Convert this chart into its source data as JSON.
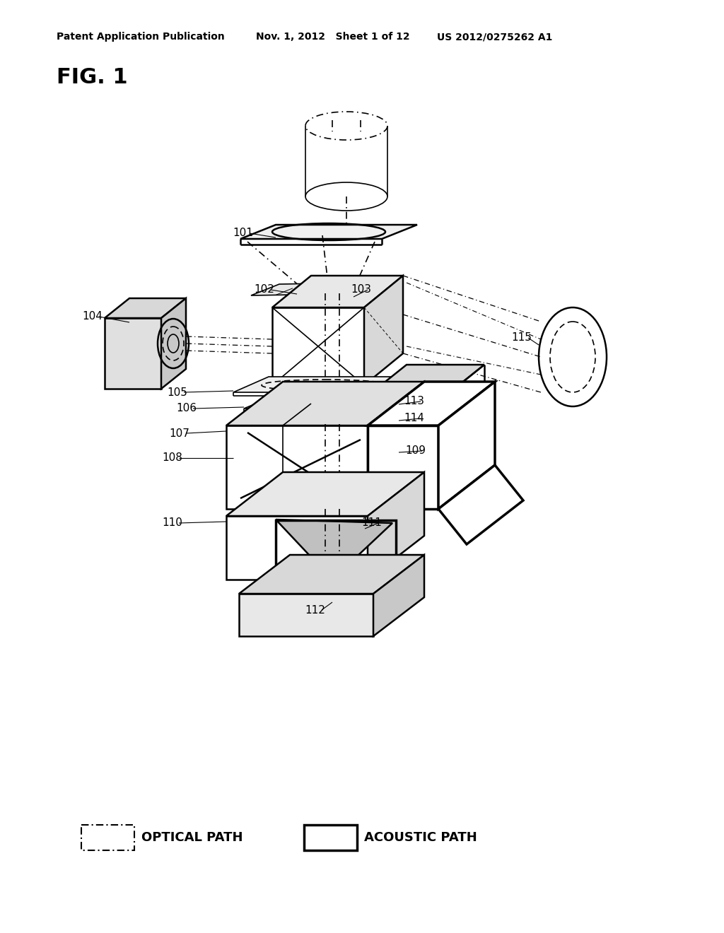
{
  "bg_color": "#ffffff",
  "line_color": "#000000",
  "header_left": "Patent Application Publication",
  "header_mid": "Nov. 1, 2012   Sheet 1 of 12",
  "header_right": "US 2012/0275262 A1",
  "fig_label": "FIG. 1",
  "optical_path_label": "OPTICAL PATH",
  "acoustic_path_label": "ACOUSTIC PATH"
}
